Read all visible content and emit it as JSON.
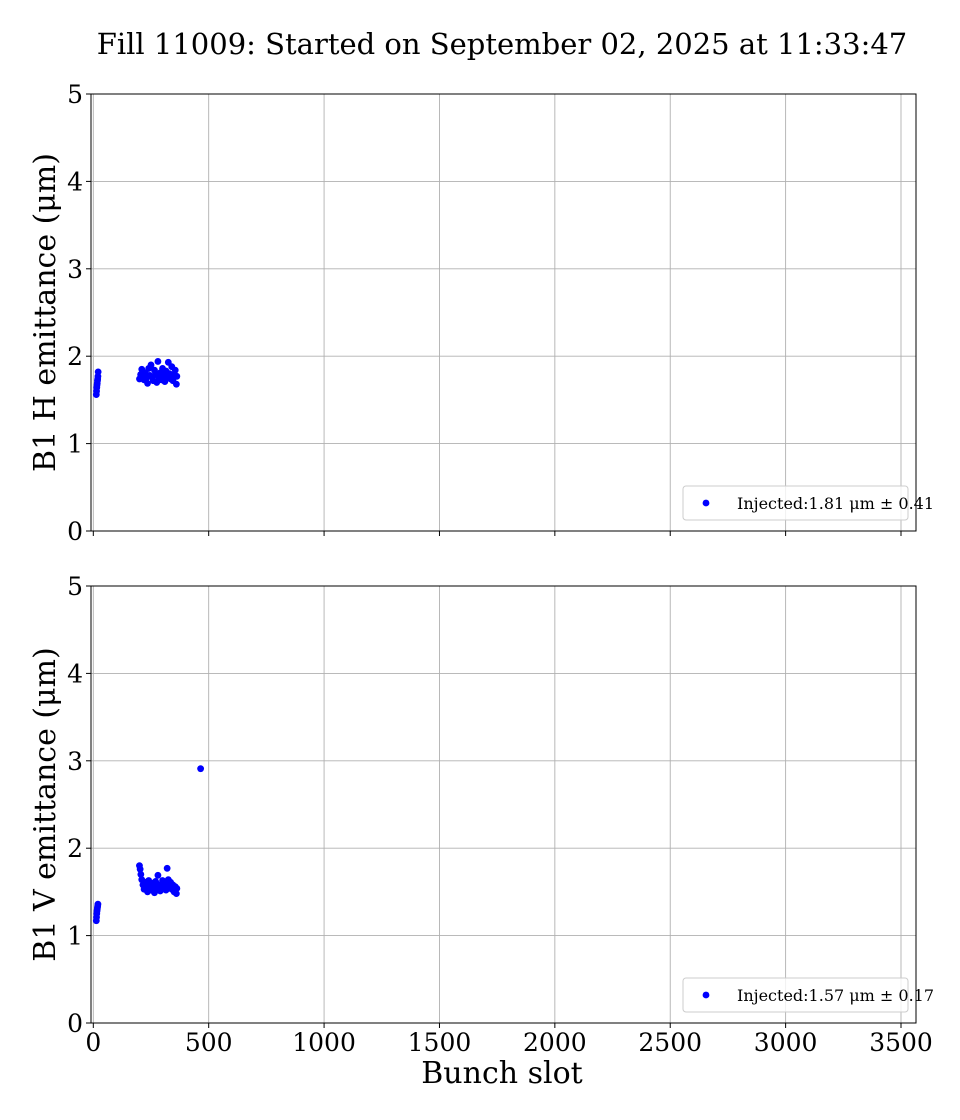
{
  "figure": {
    "title": "Fill 11009: Started on September 02, 2025 at 11:33:47",
    "xlabel": "Bunch slot"
  },
  "chart_data": [
    {
      "type": "scatter",
      "ylabel": "B1 H emittance (μm)",
      "xlim": [
        -10,
        3565
      ],
      "ylim": [
        0,
        5
      ],
      "xticks": [
        "0",
        "500",
        "1000",
        "1500",
        "2000",
        "2500",
        "3000",
        "3500"
      ],
      "yticks": [
        "0",
        "1",
        "2",
        "3",
        "4",
        "5"
      ],
      "grid": true,
      "legend_placement": "lower-right",
      "series": [
        {
          "name": "Injected:1.81 μm ± 0.41",
          "color": "#0000ff",
          "points": [
            [
              13,
              1.56
            ],
            [
              14,
              1.6
            ],
            [
              15,
              1.64
            ],
            [
              16,
              1.67
            ],
            [
              17,
              1.69
            ],
            [
              18,
              1.72
            ],
            [
              19,
              1.74
            ],
            [
              20,
              1.77
            ],
            [
              21,
              1.82
            ],
            [
              200,
              1.74
            ],
            [
              205,
              1.79
            ],
            [
              210,
              1.85
            ],
            [
              215,
              1.77
            ],
            [
              220,
              1.73
            ],
            [
              225,
              1.81
            ],
            [
              230,
              1.75
            ],
            [
              235,
              1.69
            ],
            [
              240,
              1.86
            ],
            [
              245,
              1.78
            ],
            [
              250,
              1.9
            ],
            [
              255,
              1.76
            ],
            [
              260,
              1.72
            ],
            [
              265,
              1.84
            ],
            [
              270,
              1.79
            ],
            [
              275,
              1.7
            ],
            [
              280,
              1.94
            ],
            [
              285,
              1.75
            ],
            [
              290,
              1.81
            ],
            [
              295,
              1.73
            ],
            [
              300,
              1.86
            ],
            [
              305,
              1.78
            ],
            [
              310,
              1.71
            ],
            [
              315,
              1.83
            ],
            [
              320,
              1.76
            ],
            [
              325,
              1.93
            ],
            [
              330,
              1.8
            ],
            [
              335,
              1.74
            ],
            [
              340,
              1.88
            ],
            [
              345,
              1.72
            ],
            [
              350,
              1.79
            ],
            [
              355,
              1.84
            ],
            [
              360,
              1.68
            ],
            [
              362,
              1.77
            ]
          ]
        }
      ]
    },
    {
      "type": "scatter",
      "ylabel": "B1 V emittance (μm)",
      "xlim": [
        -10,
        3565
      ],
      "ylim": [
        0,
        5
      ],
      "xticks": [
        "0",
        "500",
        "1000",
        "1500",
        "2000",
        "2500",
        "3000",
        "3500"
      ],
      "yticks": [
        "0",
        "1",
        "2",
        "3",
        "4",
        "5"
      ],
      "grid": true,
      "legend_placement": "lower-right",
      "series": [
        {
          "name": "Injected:1.57 μm ± 0.17",
          "color": "#0000ff",
          "points": [
            [
              13,
              1.17
            ],
            [
              14,
              1.21
            ],
            [
              15,
              1.25
            ],
            [
              16,
              1.28
            ],
            [
              17,
              1.3
            ],
            [
              18,
              1.32
            ],
            [
              19,
              1.34
            ],
            [
              20,
              1.36
            ],
            [
              200,
              1.8
            ],
            [
              203,
              1.76
            ],
            [
              206,
              1.7
            ],
            [
              210,
              1.64
            ],
            [
              215,
              1.58
            ],
            [
              220,
              1.53
            ],
            [
              225,
              1.61
            ],
            [
              230,
              1.55
            ],
            [
              235,
              1.5
            ],
            [
              240,
              1.63
            ],
            [
              245,
              1.57
            ],
            [
              250,
              1.52
            ],
            [
              255,
              1.6
            ],
            [
              260,
              1.56
            ],
            [
              265,
              1.49
            ],
            [
              270,
              1.62
            ],
            [
              275,
              1.54
            ],
            [
              280,
              1.69
            ],
            [
              285,
              1.58
            ],
            [
              290,
              1.51
            ],
            [
              295,
              1.57
            ],
            [
              300,
              1.63
            ],
            [
              305,
              1.55
            ],
            [
              310,
              1.6
            ],
            [
              315,
              1.52
            ],
            [
              320,
              1.77
            ],
            [
              325,
              1.64
            ],
            [
              330,
              1.56
            ],
            [
              335,
              1.61
            ],
            [
              340,
              1.53
            ],
            [
              345,
              1.58
            ],
            [
              350,
              1.5
            ],
            [
              355,
              1.56
            ],
            [
              360,
              1.48
            ],
            [
              362,
              1.54
            ],
            [
              465,
              2.91
            ]
          ]
        }
      ]
    }
  ]
}
